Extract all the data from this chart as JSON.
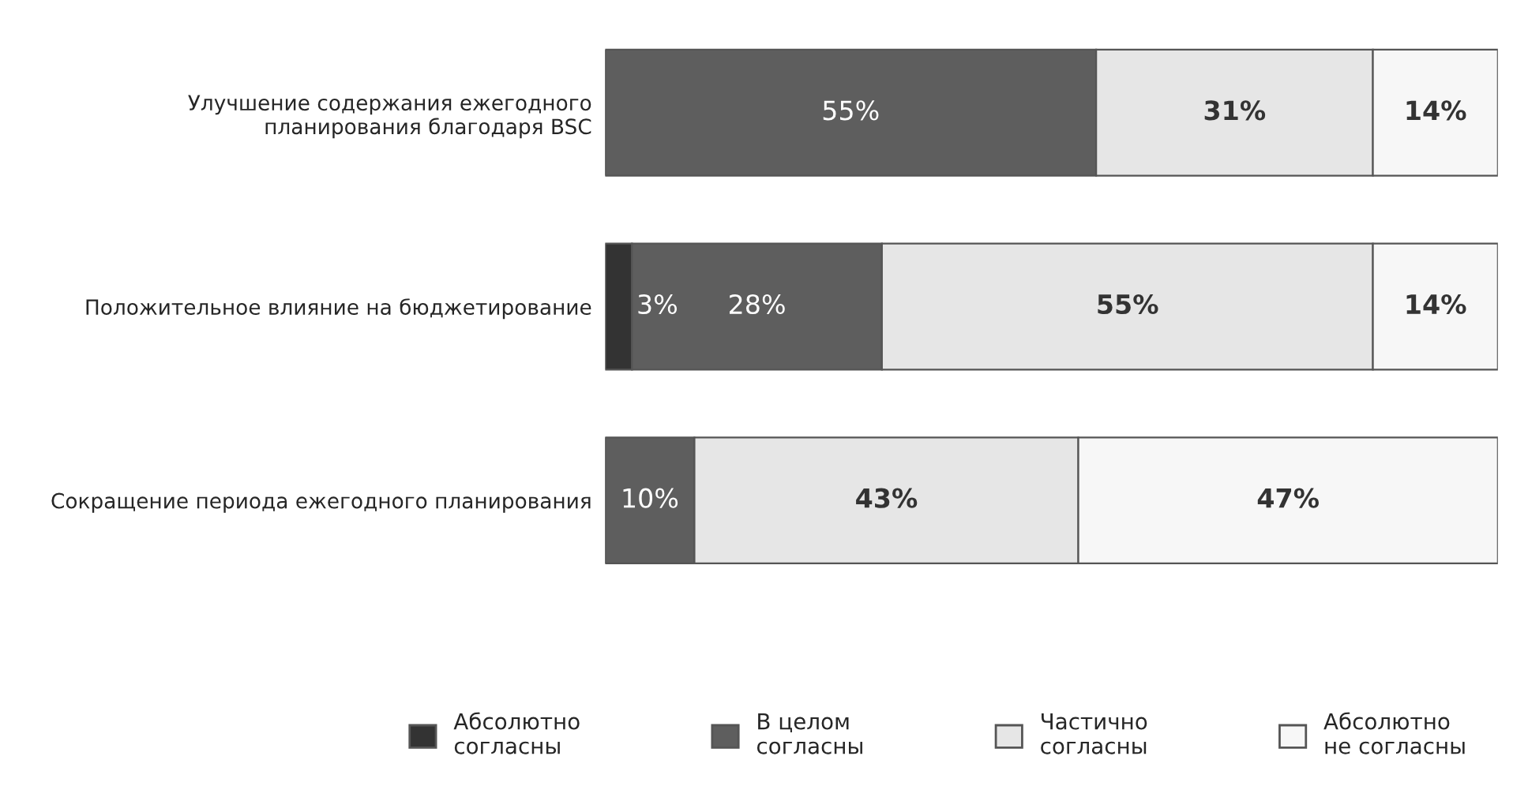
{
  "chart_data": {
    "type": "bar",
    "orientation": "horizontal",
    "stacked": true,
    "categories": [
      "Улучшение содержания ежегодного\nпланирования благодаря BSC",
      "Положительное влияние на бюджетирование",
      "Сокращение периода ежегодного планирования"
    ],
    "series": [
      {
        "name": "Абсолютно\nсогласны",
        "color": "#333333",
        "values": [
          0,
          3,
          0
        ],
        "value_labels": [
          null,
          "3%",
          null
        ]
      },
      {
        "name": "В целом\nсогласны",
        "color": "#5e5e5e",
        "values": [
          55,
          28,
          10
        ],
        "value_labels": [
          "55%",
          "28%",
          "10%"
        ]
      },
      {
        "name": "Частично\nсогласны",
        "color": "#e6e6e6",
        "values": [
          31,
          55,
          43
        ],
        "value_labels": [
          "31%",
          "55%",
          "43%"
        ]
      },
      {
        "name": "Абсолютно\nне согласны",
        "color": "#f7f7f7",
        "values": [
          14,
          14,
          47
        ],
        "value_labels": [
          "14%",
          "14%",
          "47%"
        ]
      }
    ],
    "legend": "bottom"
  }
}
